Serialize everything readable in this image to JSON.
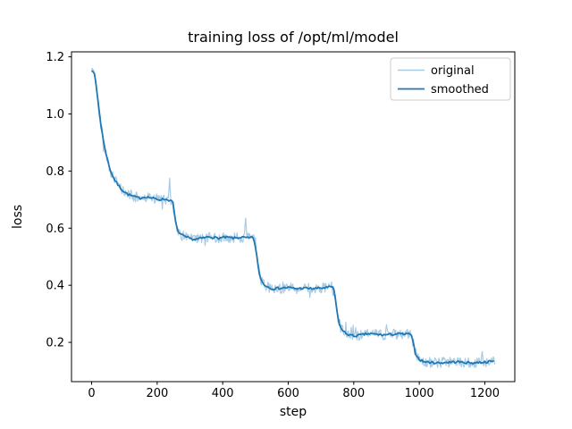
{
  "chart_data": {
    "type": "line",
    "title": "training loss of /opt/ml/model",
    "xlabel": "step",
    "ylabel": "loss",
    "xlim": [
      -61.5,
      1291.5
    ],
    "ylim": [
      0.0625,
      1.2175
    ],
    "xticks": [
      0,
      200,
      400,
      600,
      800,
      1000,
      1200
    ],
    "yticks": [
      0.2,
      0.4,
      0.6,
      0.8,
      1.0,
      1.2
    ],
    "grid": false,
    "legend_position": "upper right",
    "legend": [
      "original",
      "smoothed"
    ],
    "series": [
      {
        "name": "original",
        "color": "#a8cbe4",
        "style": "noisy raw loss trace",
        "derived_from": "smoothed",
        "noise_amp": 0.018,
        "spike_chance": 0.06,
        "spike_scale": 2.3,
        "seed": 42,
        "sample_step": 2,
        "spikes": [
          [
            238,
            0.775
          ],
          [
            470,
            0.635
          ],
          [
            900,
            0.262
          ],
          [
            1192,
            0.168
          ]
        ]
      },
      {
        "name": "smoothed",
        "color": "#1f77b4",
        "style": "moving-average of original",
        "points": [
          [
            0,
            1.155
          ],
          [
            6,
            1.15
          ],
          [
            12,
            1.115
          ],
          [
            20,
            1.04
          ],
          [
            28,
            0.965
          ],
          [
            36,
            0.905
          ],
          [
            45,
            0.855
          ],
          [
            55,
            0.81
          ],
          [
            65,
            0.78
          ],
          [
            78,
            0.755
          ],
          [
            92,
            0.735
          ],
          [
            108,
            0.72
          ],
          [
            125,
            0.712
          ],
          [
            145,
            0.705
          ],
          [
            165,
            0.71
          ],
          [
            185,
            0.705
          ],
          [
            205,
            0.7
          ],
          [
            222,
            0.702
          ],
          [
            238,
            0.698
          ],
          [
            248,
            0.69
          ],
          [
            254,
            0.635
          ],
          [
            260,
            0.6
          ],
          [
            268,
            0.582
          ],
          [
            280,
            0.572
          ],
          [
            295,
            0.565
          ],
          [
            315,
            0.56
          ],
          [
            338,
            0.565
          ],
          [
            360,
            0.57
          ],
          [
            385,
            0.565
          ],
          [
            410,
            0.568
          ],
          [
            435,
            0.565
          ],
          [
            458,
            0.568
          ],
          [
            478,
            0.565
          ],
          [
            494,
            0.568
          ],
          [
            502,
            0.52
          ],
          [
            508,
            0.465
          ],
          [
            515,
            0.425
          ],
          [
            524,
            0.405
          ],
          [
            536,
            0.395
          ],
          [
            552,
            0.388
          ],
          [
            575,
            0.39
          ],
          [
            600,
            0.392
          ],
          [
            625,
            0.388
          ],
          [
            650,
            0.39
          ],
          [
            675,
            0.388
          ],
          [
            700,
            0.39
          ],
          [
            720,
            0.392
          ],
          [
            738,
            0.395
          ],
          [
            745,
            0.34
          ],
          [
            751,
            0.29
          ],
          [
            758,
            0.255
          ],
          [
            768,
            0.238
          ],
          [
            782,
            0.228
          ],
          [
            800,
            0.222
          ],
          [
            822,
            0.226
          ],
          [
            845,
            0.23
          ],
          [
            868,
            0.228
          ],
          [
            892,
            0.226
          ],
          [
            915,
            0.228
          ],
          [
            938,
            0.23
          ],
          [
            958,
            0.228
          ],
          [
            974,
            0.23
          ],
          [
            981,
            0.2
          ],
          [
            987,
            0.168
          ],
          [
            994,
            0.148
          ],
          [
            1003,
            0.138
          ],
          [
            1015,
            0.132
          ],
          [
            1035,
            0.13
          ],
          [
            1060,
            0.128
          ],
          [
            1085,
            0.13
          ],
          [
            1110,
            0.132
          ],
          [
            1135,
            0.13
          ],
          [
            1160,
            0.128
          ],
          [
            1185,
            0.13
          ],
          [
            1210,
            0.132
          ],
          [
            1230,
            0.134
          ]
        ]
      }
    ]
  }
}
